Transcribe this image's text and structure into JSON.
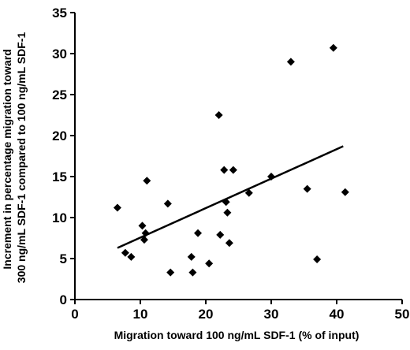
{
  "chart_data": {
    "type": "scatter",
    "title": "",
    "xlabel": "Migration toward 100 ng/mL SDF-1 (% of input)",
    "ylabel_lines": [
      "Increment in percentage migration toward",
      "300 ng/mL SDF-1 compared to 100 ng/mL SDF-1"
    ],
    "xlim": [
      0,
      50
    ],
    "ylim": [
      0,
      35
    ],
    "xticks": [
      "0",
      "10",
      "20",
      "30",
      "40",
      "50"
    ],
    "yticks": [
      "0",
      "5",
      "10",
      "15",
      "20",
      "25",
      "30",
      "35"
    ],
    "grid": false,
    "legend": "none",
    "marker": "diamond",
    "marker_color": "#000000",
    "series": [
      {
        "x": [
          6.5,
          7.7,
          8.6,
          10.3,
          10.6,
          10.8,
          11.0,
          14.2,
          14.6,
          17.8,
          18.0,
          18.8,
          20.5,
          22.0,
          22.2,
          22.8,
          23.1,
          23.3,
          23.6,
          24.2,
          26.6,
          30.0,
          33.0,
          35.5,
          37.0,
          39.5,
          41.3
        ],
        "y": [
          11.2,
          5.7,
          5.2,
          9.0,
          7.3,
          8.1,
          14.5,
          11.7,
          3.3,
          5.2,
          3.3,
          8.1,
          4.4,
          22.5,
          7.9,
          15.8,
          11.9,
          10.6,
          6.9,
          15.8,
          13.0,
          15.0,
          29.0,
          13.5,
          4.9,
          30.7,
          13.1
        ]
      }
    ],
    "trendline": {
      "x": [
        6.5,
        41.0
      ],
      "y": [
        6.3,
        18.7
      ]
    }
  }
}
